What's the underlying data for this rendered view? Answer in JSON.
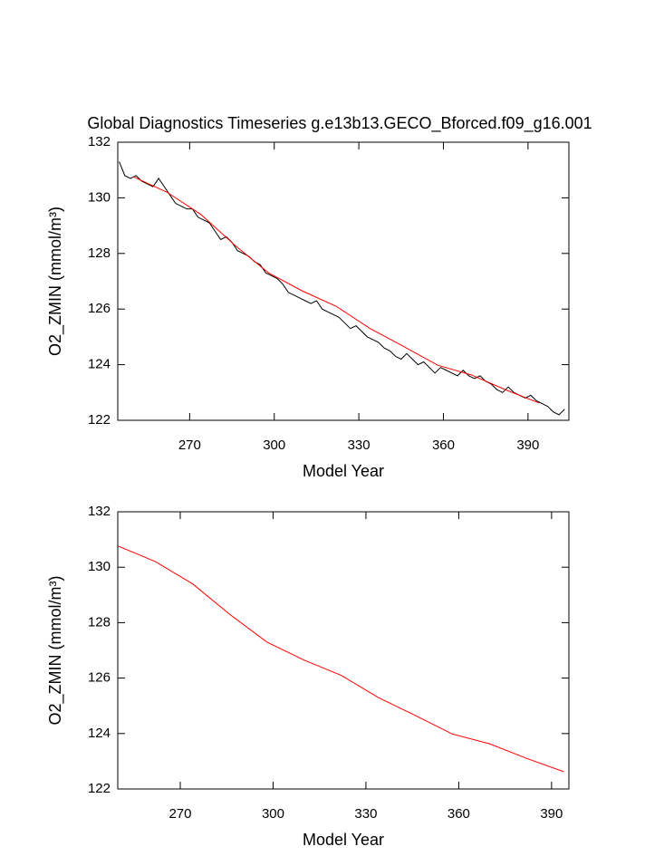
{
  "chart_data": [
    {
      "type": "line",
      "title": "Global Diagnostics Timeseries g.e13b13.GECO_Bforced.f09_g16.001",
      "x_label": "Model Year",
      "y_label": "O2_ZMIN (mmol/m³)",
      "xlim": [
        244.5,
        404.5
      ],
      "xticks": [
        270,
        300,
        330,
        360,
        390
      ],
      "ylim": [
        122,
        132
      ],
      "yticks": [
        122,
        124,
        126,
        128,
        130,
        132
      ],
      "series": [
        {
          "color": "#000000",
          "x": [
            245,
            247,
            249,
            251,
            253,
            255,
            257,
            259,
            261,
            263,
            265,
            267,
            269,
            271,
            273,
            275,
            277,
            279,
            281,
            283,
            285,
            287,
            289,
            291,
            293,
            295,
            297,
            299,
            301,
            303,
            305,
            307,
            309,
            311,
            313,
            315,
            317,
            319,
            321,
            323,
            325,
            327,
            329,
            331,
            333,
            335,
            337,
            339,
            341,
            343,
            345,
            347,
            349,
            351,
            353,
            355,
            357,
            359,
            361,
            363,
            365,
            367,
            369,
            371,
            373,
            375,
            377,
            379,
            381,
            383,
            385,
            387,
            389,
            391,
            393,
            395,
            397,
            399,
            401,
            403
          ],
          "values": [
            131.3,
            130.8,
            130.7,
            130.8,
            130.6,
            130.5,
            130.4,
            130.7,
            130.4,
            130.1,
            129.8,
            129.7,
            129.6,
            129.6,
            129.3,
            129.2,
            129.1,
            128.8,
            128.5,
            128.6,
            128.4,
            128.1,
            128.0,
            127.9,
            127.7,
            127.6,
            127.3,
            127.2,
            127.1,
            126.9,
            126.6,
            126.5,
            126.4,
            126.3,
            126.2,
            126.3,
            126.0,
            125.9,
            125.8,
            125.7,
            125.5,
            125.3,
            125.4,
            125.2,
            125.0,
            124.9,
            124.8,
            124.6,
            124.5,
            124.3,
            124.2,
            124.4,
            124.2,
            124.0,
            124.1,
            123.9,
            123.7,
            123.9,
            123.8,
            123.7,
            123.6,
            123.8,
            123.6,
            123.5,
            123.6,
            123.4,
            123.3,
            123.1,
            123.0,
            123.2,
            123.0,
            122.9,
            122.8,
            122.9,
            122.7,
            122.6,
            122.5,
            122.3,
            122.2,
            122.4
          ]
        },
        {
          "color": "#ff0000",
          "x": [
            250,
            262,
            274,
            286,
            298,
            310,
            322,
            334,
            346,
            358,
            370,
            382,
            394
          ],
          "values": [
            130.76,
            130.2,
            129.4,
            128.3,
            127.3,
            126.65,
            126.1,
            125.3,
            124.65,
            123.98,
            123.63,
            123.1,
            122.62
          ]
        }
      ]
    },
    {
      "type": "line",
      "x_label": "Model Year",
      "y_label": "O2_ZMIN (mmol/m³)",
      "xlim": [
        249.8,
        395.6
      ],
      "xticks": [
        270,
        300,
        330,
        360,
        390
      ],
      "ylim": [
        122,
        132
      ],
      "yticks": [
        122,
        124,
        126,
        128,
        130,
        132
      ],
      "series": [
        {
          "color": "#ff0000",
          "x": [
            250,
            262,
            274,
            286,
            298,
            310,
            322,
            334,
            346,
            358,
            370,
            382,
            394
          ],
          "values": [
            130.76,
            130.2,
            129.4,
            128.3,
            127.3,
            126.65,
            126.1,
            125.3,
            124.65,
            123.98,
            123.63,
            123.1,
            122.62
          ]
        }
      ]
    }
  ]
}
